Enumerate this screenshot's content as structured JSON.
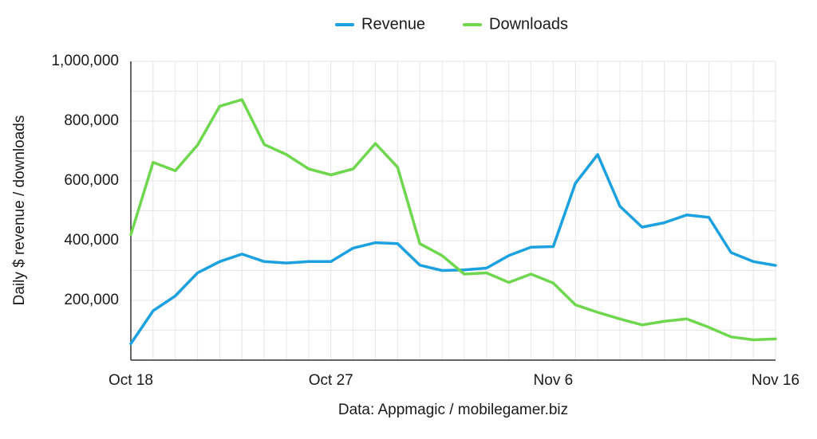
{
  "chart_data": {
    "type": "line",
    "title": "",
    "xlabel": "",
    "ylabel": "Daily $ revenue / downloads",
    "source": "Data: Appmagic / mobilegamer.biz",
    "ylim": [
      0,
      1000000
    ],
    "y_ticks": [
      200000,
      400000,
      600000,
      800000,
      1000000
    ],
    "y_tick_labels": [
      "200,000",
      "400,000",
      "600,000",
      "800,000",
      "1,000,000"
    ],
    "x_ticks": [
      0,
      9,
      19,
      29
    ],
    "x_tick_labels": [
      "Oct 18",
      "Oct 27",
      "Nov 6",
      "Nov 16"
    ],
    "legend_position": "top-center",
    "grid": true,
    "x": [
      "Oct 18",
      "Oct 19",
      "Oct 20",
      "Oct 21",
      "Oct 22",
      "Oct 23",
      "Oct 24",
      "Oct 25",
      "Oct 26",
      "Oct 27",
      "Oct 28",
      "Oct 29",
      "Oct 30",
      "Oct 31",
      "Nov 1",
      "Nov 2",
      "Nov 3",
      "Nov 4",
      "Nov 5",
      "Nov 6",
      "Nov 7",
      "Nov 8",
      "Nov 9",
      "Nov 10",
      "Nov 11",
      "Nov 12",
      "Nov 13",
      "Nov 14",
      "Nov 15",
      "Nov 16"
    ],
    "series": [
      {
        "name": "Revenue",
        "color": "#1ca1e0",
        "values": [
          55000,
          165000,
          215000,
          292000,
          330000,
          355000,
          330000,
          325000,
          330000,
          330000,
          375000,
          393000,
          390000,
          318000,
          300000,
          302000,
          308000,
          350000,
          378000,
          380000,
          592000,
          688000,
          515000,
          445000,
          460000,
          486000,
          478000,
          360000,
          330000,
          317000
        ]
      },
      {
        "name": "Downloads",
        "color": "#6ed74e",
        "values": [
          420000,
          662000,
          634000,
          720000,
          850000,
          872000,
          722000,
          688000,
          640000,
          620000,
          640000,
          725000,
          646000,
          390000,
          350000,
          288000,
          292000,
          260000,
          288000,
          258000,
          185000,
          160000,
          138000,
          118000,
          130000,
          138000,
          110000,
          78000,
          68000,
          71000
        ]
      }
    ]
  }
}
